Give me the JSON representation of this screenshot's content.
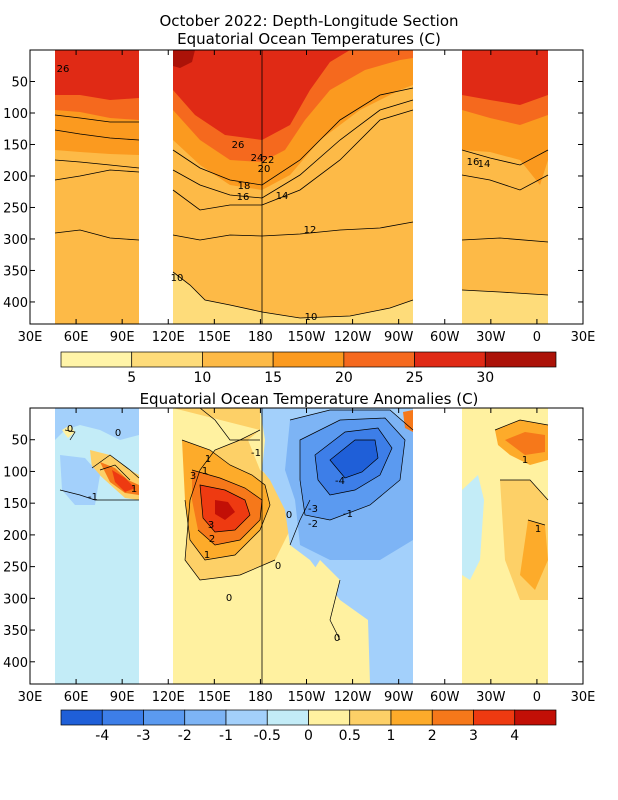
{
  "chart_data": [
    {
      "type": "heatmap",
      "title": "October 2022: Depth-Longitude Section",
      "subtitle": "Equatorial Ocean Temperatures (C)",
      "xlabel": "",
      "ylabel": "",
      "x_ticks": [
        "30E",
        "60E",
        "90E",
        "120E",
        "150E",
        "180",
        "150W",
        "120W",
        "90W",
        "60W",
        "30W",
        "0",
        "30E"
      ],
      "y_ticks": [
        "50",
        "100",
        "150",
        "200",
        "250",
        "300",
        "350",
        "400"
      ],
      "ylim": [
        0,
        435
      ],
      "colorbar": {
        "labels": [
          "5",
          "10",
          "15",
          "20",
          "25",
          "30"
        ],
        "levels": [
          0,
          5,
          10,
          15,
          20,
          25,
          30,
          35
        ],
        "colors": [
          "#fff4a8",
          "#fedc7a",
          "#fdba47",
          "#fb9a1f",
          "#f5691e",
          "#e02a15",
          "#ab1208"
        ]
      },
      "contour_labels": [
        "26",
        "26",
        "24",
        "22",
        "20",
        "18",
        "16",
        "14",
        "12",
        "10",
        "10",
        "16",
        "14"
      ]
    },
    {
      "type": "heatmap",
      "title": "Equatorial Ocean Temperature Anomalies (C)",
      "xlabel": "",
      "ylabel": "",
      "x_ticks": [
        "30E",
        "60E",
        "90E",
        "120E",
        "150E",
        "180",
        "150W",
        "120W",
        "90W",
        "60W",
        "30W",
        "0",
        "30E"
      ],
      "y_ticks": [
        "50",
        "100",
        "150",
        "200",
        "250",
        "300",
        "350",
        "400"
      ],
      "ylim": [
        0,
        435
      ],
      "colorbar": {
        "labels": [
          "-4",
          "-3",
          "-2",
          "-1",
          "-0.5",
          "0",
          "0.5",
          "1",
          "2",
          "3",
          "4"
        ],
        "levels": [
          -5,
          -4,
          -3,
          -2,
          -1,
          -0.5,
          0,
          0.5,
          1,
          2,
          3,
          4,
          5
        ],
        "colors": [
          "#1f5fd8",
          "#3d7ee8",
          "#5b9af0",
          "#7db4f5",
          "#a3d0fb",
          "#c3ecf7",
          "#fff1a0",
          "#fdd067",
          "#fdab2a",
          "#f6781a",
          "#ee3a11",
          "#c20f06"
        ]
      },
      "contour_labels": [
        "0",
        "0",
        "1",
        "-1",
        "1",
        "3",
        "1",
        "-1",
        "3",
        "2",
        "1",
        "0",
        "0",
        "-4",
        "-3",
        "-2",
        "-1",
        "0",
        "0",
        "1",
        "1"
      ]
    }
  ]
}
